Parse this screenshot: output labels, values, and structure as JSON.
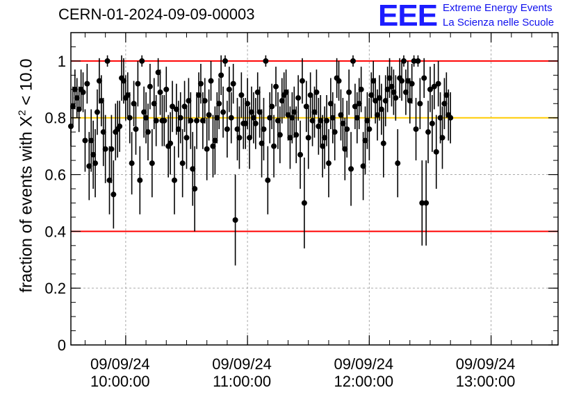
{
  "run_title": "CERN-01-2024-09-09-00003",
  "logo": {
    "mark": "EEE",
    "line1": "Extreme Energy Events",
    "line2": "La Scienza nelle Scuole",
    "color": "#1c1cff"
  },
  "chart_data": {
    "type": "scatter",
    "title": "CERN-01-2024-09-09-00003",
    "xlabel": "",
    "ylabel": {
      "prefix": "fraction of events with ",
      "symbol": "X",
      "sup": "2",
      "suffix": " < 10.0"
    },
    "x_range": [
      "09:33",
      "13:33"
    ],
    "ylim": [
      0,
      1.1
    ],
    "yticks": [
      0,
      0.2,
      0.4,
      0.6,
      0.8,
      1
    ],
    "ytick_labels": [
      "0",
      "0.2",
      "0.4",
      "0.6",
      "0.8",
      "1"
    ],
    "xticks": [
      {
        "time": "10:00",
        "date_label": "09/09/24",
        "time_label": "10:00:00"
      },
      {
        "time": "11:00",
        "date_label": "09/09/24",
        "time_label": "11:00:00"
      },
      {
        "time": "12:00",
        "date_label": "09/09/24",
        "time_label": "12:00:00"
      },
      {
        "time": "13:00",
        "date_label": "09/09/24",
        "time_label": "13:00:00"
      }
    ],
    "grid": true,
    "reference_lines": [
      {
        "y": 1.0,
        "color": "#ff0000"
      },
      {
        "y": 0.8,
        "color": "#ffcc00"
      },
      {
        "y": 0.4,
        "color": "#ff0000"
      }
    ],
    "marker_color": "#000000",
    "series": [
      {
        "sampling_interval_s": 60,
        "first_time": "09:33",
        "values": [
          0.77,
          0.84,
          0.9,
          0.87,
          0.83,
          0.9,
          0.89,
          0.72,
          0.92,
          0.63,
          0.72,
          0.67,
          0.64,
          0.82,
          0.93,
          0.86,
          0.75,
          0.69,
          1.0,
          0.58,
          0.69,
          0.53,
          0.75,
          0.76,
          0.77,
          0.94,
          0.93,
          0.87,
          0.88,
          0.8,
          0.64,
          0.85,
          0.76,
          0.92,
          0.58,
          1.0,
          0.82,
          0.8,
          0.75,
          0.91,
          0.64,
          0.85,
          0.79,
          0.96,
          0.89,
          0.79,
          0.79,
          0.9,
          0.7,
          0.71,
          0.84,
          0.58,
          0.83,
          0.76,
          0.8,
          0.64,
          0.84,
          0.73,
          0.86,
          0.79,
          0.62,
          0.55,
          0.79,
          0.88,
          0.92,
          0.79,
          0.86,
          0.69,
          0.81,
          0.93,
          0.7,
          0.72,
          0.8,
          0.85,
          0.95,
          0.82,
          1.0,
          0.76,
          0.9,
          0.8,
          0.92,
          0.44,
          0.76,
          0.73,
          0.88,
          0.78,
          0.78,
          0.85,
          0.73,
          0.82,
          0.8,
          0.78,
          0.89,
          0.82,
          0.71,
          0.76,
          1.0,
          0.58,
          0.8,
          0.84,
          0.7,
          0.91,
          0.79,
          0.74,
          0.86,
          0.88,
          0.89,
          0.81,
          0.73,
          0.8,
          0.82,
          0.74,
          0.87,
          0.67,
          0.93,
          0.5,
          0.84,
          0.73,
          0.88,
          0.79,
          0.82,
          0.89,
          0.77,
          0.79,
          0.7,
          0.73,
          0.79,
          0.64,
          0.85,
          0.8,
          0.75,
          0.94,
          0.93,
          0.81,
          0.78,
          0.69,
          0.76,
          0.89,
          0.62,
          1.0,
          0.84,
          0.8,
          0.85,
          0.9,
          0.63,
          0.72,
          0.79,
          0.76,
          0.88,
          0.93,
          0.86,
          0.81,
          0.87,
          0.83,
          0.71,
          0.86,
          0.9,
          0.94,
          0.91,
          0.89,
          0.87,
          0.64,
          0.94,
          0.93,
          1.0,
          0.89,
          0.93,
          0.86,
          0.92,
          1.0,
          0.76,
          1.0,
          0.85,
          0.5,
          0.94,
          0.5,
          0.75,
          0.9,
          0.78,
          0.91,
          0.68,
          0.92,
          0.8,
          0.73,
          0.85,
          0.88,
          0.81,
          0.8
        ],
        "errors": [
          0.07,
          0.07,
          0.07,
          0.07,
          0.08,
          0.07,
          0.07,
          0.11,
          0.07,
          0.12,
          0.11,
          0.12,
          0.12,
          0.08,
          0.08,
          0.09,
          0.12,
          0.12,
          0.02,
          0.12,
          0.12,
          0.12,
          0.1,
          0.1,
          0.09,
          0.08,
          0.08,
          0.08,
          0.08,
          0.09,
          0.11,
          0.08,
          0.09,
          0.08,
          0.12,
          0.02,
          0.09,
          0.09,
          0.1,
          0.08,
          0.12,
          0.09,
          0.09,
          0.05,
          0.08,
          0.09,
          0.09,
          0.08,
          0.11,
          0.11,
          0.09,
          0.12,
          0.09,
          0.1,
          0.09,
          0.12,
          0.09,
          0.11,
          0.08,
          0.1,
          0.13,
          0.15,
          0.1,
          0.08,
          0.07,
          0.1,
          0.08,
          0.11,
          0.09,
          0.07,
          0.11,
          0.12,
          0.09,
          0.09,
          0.07,
          0.09,
          0.02,
          0.1,
          0.08,
          0.09,
          0.07,
          0.16,
          0.11,
          0.11,
          0.08,
          0.09,
          0.09,
          0.09,
          0.11,
          0.09,
          0.09,
          0.09,
          0.07,
          0.09,
          0.12,
          0.11,
          0.02,
          0.12,
          0.09,
          0.08,
          0.11,
          0.07,
          0.1,
          0.1,
          0.08,
          0.08,
          0.08,
          0.09,
          0.11,
          0.09,
          0.09,
          0.1,
          0.08,
          0.12,
          0.08,
          0.16,
          0.09,
          0.11,
          0.08,
          0.09,
          0.09,
          0.08,
          0.1,
          0.09,
          0.11,
          0.11,
          0.09,
          0.12,
          0.09,
          0.09,
          0.1,
          0.07,
          0.07,
          0.09,
          0.09,
          0.11,
          0.1,
          0.08,
          0.13,
          0.02,
          0.08,
          0.09,
          0.09,
          0.08,
          0.12,
          0.12,
          0.1,
          0.11,
          0.08,
          0.07,
          0.08,
          0.09,
          0.08,
          0.09,
          0.12,
          0.09,
          0.08,
          0.07,
          0.07,
          0.08,
          0.08,
          0.12,
          0.07,
          0.07,
          0.02,
          0.08,
          0.07,
          0.08,
          0.07,
          0.02,
          0.11,
          0.02,
          0.09,
          0.15,
          0.07,
          0.15,
          0.11,
          0.08,
          0.1,
          0.08,
          0.13,
          0.08,
          0.09,
          0.11,
          0.09,
          0.08,
          0.09,
          0.09
        ]
      }
    ]
  }
}
